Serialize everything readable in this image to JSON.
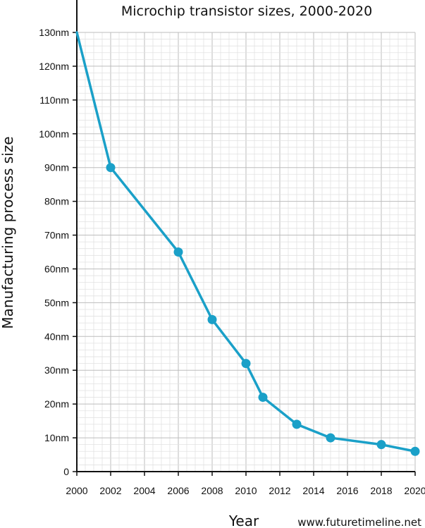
{
  "chart_data": {
    "type": "line",
    "title": "Microchip transistor sizes, 2000-2020",
    "xlabel": "Year",
    "ylabel": "Manufacturing process size",
    "credit": "www.futuretimeline.net",
    "xlim": [
      2000,
      2020
    ],
    "ylim": [
      0,
      130
    ],
    "grid": true,
    "x_ticks": [
      "2000",
      "2002",
      "2004",
      "2006",
      "2008",
      "2010",
      "2012",
      "2014",
      "2016",
      "2018",
      "2020"
    ],
    "y_ticks": [
      "0",
      "10nm",
      "20nm",
      "30nm",
      "40nm",
      "50nm",
      "60nm",
      "70nm",
      "80nm",
      "90nm",
      "100nm",
      "110nm",
      "120nm",
      "130nm"
    ],
    "colors": {
      "series": "#1aa0c8",
      "grid": "#cfcfcf",
      "axis": "#111111"
    },
    "series": [
      {
        "x": [
          2000,
          2002,
          2006,
          2008,
          2010,
          2011,
          2013,
          2015,
          2018,
          2020
        ],
        "y": [
          130,
          90,
          65,
          45,
          32,
          22,
          14,
          10,
          8,
          6
        ],
        "markers": [
          false,
          true,
          true,
          true,
          true,
          true,
          true,
          true,
          true,
          true
        ]
      }
    ]
  }
}
